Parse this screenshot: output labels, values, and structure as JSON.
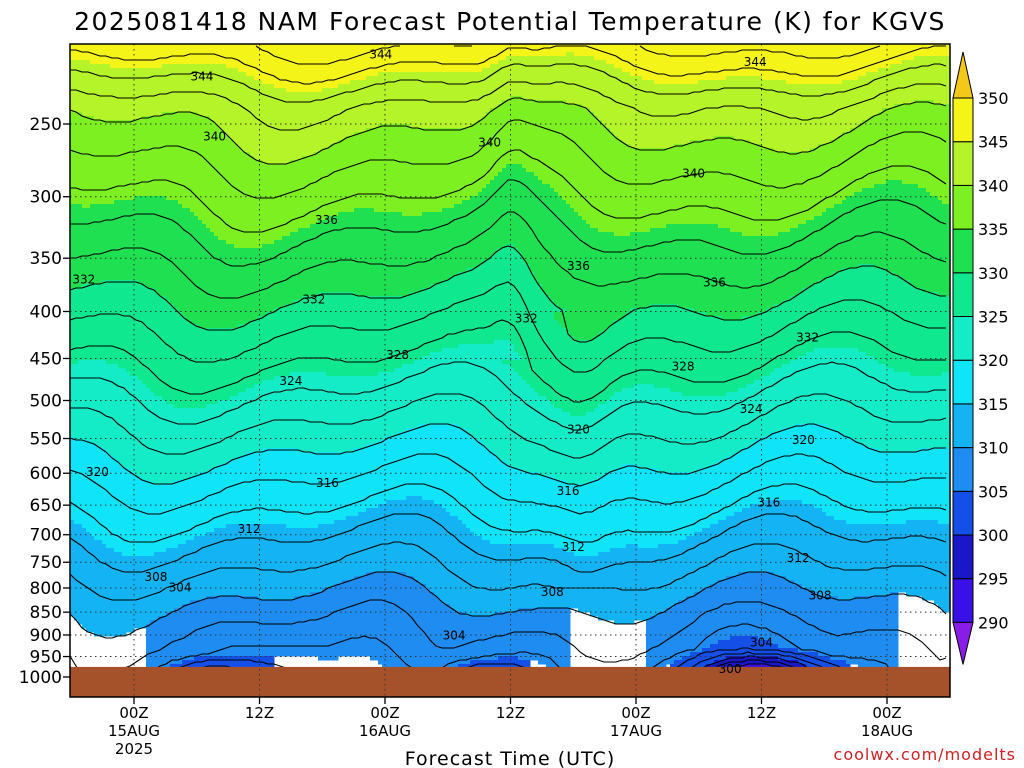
{
  "chart_data": {
    "type": "heatmap",
    "title": "2025081418 NAM Forecast Potential Temperature (K) for KGVS",
    "xlabel": "Forecast Time (UTC)",
    "credit": "coolwx.com/modelts",
    "y_axis": {
      "scale": "log-pressure",
      "range_hpa": [
        200,
        1000
      ],
      "ticks": [
        250,
        300,
        350,
        400,
        450,
        500,
        550,
        600,
        650,
        700,
        750,
        800,
        850,
        900,
        950,
        1000
      ]
    },
    "x_axis": {
      "range_hours": [
        -6,
        84
      ],
      "ticks": [
        {
          "hour": 0,
          "label": "00Z",
          "sub1": "15AUG",
          "sub2": "2025"
        },
        {
          "hour": 12,
          "label": "12Z",
          "sub1": "",
          "sub2": ""
        },
        {
          "hour": 24,
          "label": "00Z",
          "sub1": "16AUG",
          "sub2": ""
        },
        {
          "hour": 36,
          "label": "12Z",
          "sub1": "",
          "sub2": ""
        },
        {
          "hour": 48,
          "label": "00Z",
          "sub1": "17AUG",
          "sub2": ""
        },
        {
          "hour": 60,
          "label": "12Z",
          "sub1": "",
          "sub2": ""
        },
        {
          "hour": 72,
          "label": "00Z",
          "sub1": "18AUG",
          "sub2": ""
        }
      ]
    },
    "grid": true,
    "colorbar": {
      "placement": "right",
      "levels": [
        290,
        295,
        300,
        305,
        310,
        315,
        320,
        325,
        330,
        335,
        340,
        345,
        350
      ],
      "colors": [
        "#8a1ce8",
        "#3a10e8",
        "#1818c8",
        "#1450e8",
        "#1e8cf0",
        "#14b4f4",
        "#10e4f8",
        "#14ecc8",
        "#10e890",
        "#1ee050",
        "#7cf020",
        "#b4f428",
        "#f4f418",
        "#f4c818"
      ]
    },
    "contour_labels": [
      {
        "value": "344",
        "hour": 6.5,
        "p": 222
      },
      {
        "value": "344",
        "hour": 23.6,
        "p": 210
      },
      {
        "value": "344",
        "hour": 59.4,
        "p": 214
      },
      {
        "value": "340",
        "hour": 7.7,
        "p": 258
      },
      {
        "value": "340",
        "hour": 34.0,
        "p": 262
      },
      {
        "value": "340",
        "hour": 53.5,
        "p": 283
      },
      {
        "value": "336",
        "hour": 18.4,
        "p": 318
      },
      {
        "value": "336",
        "hour": 42.5,
        "p": 357
      },
      {
        "value": "336",
        "hour": 55.5,
        "p": 372
      },
      {
        "value": "332",
        "hour": -4.8,
        "p": 369
      },
      {
        "value": "332",
        "hour": 17.2,
        "p": 388
      },
      {
        "value": "332",
        "hour": 37.5,
        "p": 407
      },
      {
        "value": "332",
        "hour": 64.4,
        "p": 427
      },
      {
        "value": "328",
        "hour": 25.2,
        "p": 446
      },
      {
        "value": "328",
        "hour": 52.5,
        "p": 459
      },
      {
        "value": "324",
        "hour": 15.0,
        "p": 476
      },
      {
        "value": "324",
        "hour": 59.0,
        "p": 511
      },
      {
        "value": "320",
        "hour": -3.5,
        "p": 598
      },
      {
        "value": "320",
        "hour": 42.5,
        "p": 538
      },
      {
        "value": "320",
        "hour": 64.0,
        "p": 552
      },
      {
        "value": "316",
        "hour": 18.5,
        "p": 615
      },
      {
        "value": "316",
        "hour": 41.5,
        "p": 627
      },
      {
        "value": "316",
        "hour": 60.7,
        "p": 646
      },
      {
        "value": "312",
        "hour": 11.0,
        "p": 690
      },
      {
        "value": "312",
        "hour": 42.0,
        "p": 722
      },
      {
        "value": "312",
        "hour": 63.5,
        "p": 742
      },
      {
        "value": "308",
        "hour": 2.1,
        "p": 778
      },
      {
        "value": "308",
        "hour": 40.0,
        "p": 808
      },
      {
        "value": "308",
        "hour": 65.6,
        "p": 815
      },
      {
        "value": "304",
        "hour": 4.4,
        "p": 799
      },
      {
        "value": "304",
        "hour": 30.6,
        "p": 901
      },
      {
        "value": "304",
        "hour": 60.0,
        "p": 917
      },
      {
        "value": "300",
        "hour": 57.0,
        "p": 980
      }
    ],
    "surface": {
      "p_top": 975,
      "color": "#a5522a"
    }
  }
}
